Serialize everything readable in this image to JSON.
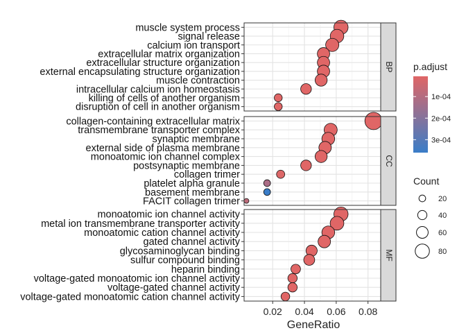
{
  "chart_data": {
    "type": "scatter",
    "xlabel": "GeneRatio",
    "x_ticks": [
      0.02,
      0.04,
      0.06,
      0.08
    ],
    "x_tick_labels": [
      "0.02",
      "0.04",
      "0.06",
      "0.08"
    ],
    "xlim": [
      0.002,
      0.088
    ],
    "facets": [
      {
        "label": "BP",
        "terms": [
          {
            "term": "muscle system process",
            "x": 0.063,
            "count": 80,
            "p_adjust": 6e-06
          },
          {
            "term": "signal release",
            "x": 0.0605,
            "count": 75,
            "p_adjust": 6e-06
          },
          {
            "term": "calcium ion transport",
            "x": 0.0575,
            "count": 72,
            "p_adjust": 6e-06
          },
          {
            "term": "extracellular matrix organization",
            "x": 0.052,
            "count": 65,
            "p_adjust": 6e-06
          },
          {
            "term": "extracellular structure organization",
            "x": 0.052,
            "count": 65,
            "p_adjust": 6e-06
          },
          {
            "term": "external encapsulating structure organization",
            "x": 0.052,
            "count": 65,
            "p_adjust": 6e-06
          },
          {
            "term": "muscle contraction",
            "x": 0.0505,
            "count": 63,
            "p_adjust": 6e-06
          },
          {
            "term": "intracellular calcium ion homeostasis",
            "x": 0.041,
            "count": 52,
            "p_adjust": 6e-06
          },
          {
            "term": "killing of cells of another organism",
            "x": 0.0235,
            "count": 30,
            "p_adjust": 6e-06
          },
          {
            "term": "disruption of cell in another organism",
            "x": 0.0235,
            "count": 30,
            "p_adjust": 6e-06
          }
        ]
      },
      {
        "label": "CC",
        "terms": [
          {
            "term": "collagen-containing extracellular matrix",
            "x": 0.0835,
            "count": 105,
            "p_adjust": 6e-06
          },
          {
            "term": "transmembrane transporter complex",
            "x": 0.0565,
            "count": 71,
            "p_adjust": 6e-06
          },
          {
            "term": "synaptic membrane",
            "x": 0.055,
            "count": 69,
            "p_adjust": 6e-06
          },
          {
            "term": "external side of plasma membrane",
            "x": 0.053,
            "count": 66,
            "p_adjust": 6e-06
          },
          {
            "term": "monoatomic ion channel complex",
            "x": 0.0505,
            "count": 63,
            "p_adjust": 6e-06
          },
          {
            "term": "postsynaptic membrane",
            "x": 0.041,
            "count": 52,
            "p_adjust": 6e-06
          },
          {
            "term": "collagen trimer",
            "x": 0.025,
            "count": 32,
            "p_adjust": 1.5e-05
          },
          {
            "term": "platelet alpha granule",
            "x": 0.0165,
            "count": 21,
            "p_adjust": 0.00012
          },
          {
            "term": "basement membrane",
            "x": 0.0165,
            "count": 21,
            "p_adjust": 0.00036
          },
          {
            "term": "FACIT collagen trimer",
            "x": 0.0035,
            "count": 5,
            "p_adjust": 8e-05
          }
        ]
      },
      {
        "label": "MF",
        "terms": [
          {
            "term": "monoatomic ion channel activity",
            "x": 0.063,
            "count": 80,
            "p_adjust": 6e-06
          },
          {
            "term": "metal ion transmembrane transporter activity",
            "x": 0.0605,
            "count": 76,
            "p_adjust": 6e-06
          },
          {
            "term": "monoatomic cation channel activity",
            "x": 0.055,
            "count": 69,
            "p_adjust": 6e-06
          },
          {
            "term": "gated channel activity",
            "x": 0.0525,
            "count": 66,
            "p_adjust": 6e-06
          },
          {
            "term": "glycosaminoglycan binding",
            "x": 0.0445,
            "count": 56,
            "p_adjust": 6e-06
          },
          {
            "term": "sulfur compound binding",
            "x": 0.043,
            "count": 54,
            "p_adjust": 6e-06
          },
          {
            "term": "heparin binding",
            "x": 0.0345,
            "count": 43,
            "p_adjust": 6e-06
          },
          {
            "term": "voltage-gated monoatomic ion channel activity",
            "x": 0.0325,
            "count": 41,
            "p_adjust": 6e-06
          },
          {
            "term": "voltage-gated channel activity",
            "x": 0.0325,
            "count": 41,
            "p_adjust": 6e-06
          },
          {
            "term": "voltage-gated monoatomic cation channel activity",
            "x": 0.028,
            "count": 36,
            "p_adjust": 6e-06
          }
        ]
      }
    ],
    "color_legend": {
      "title": "p.adjust",
      "ticks": [
        0.0001,
        0.0002,
        0.0003
      ],
      "tick_labels": [
        "1e-04",
        "2e-04",
        "3e-04"
      ],
      "range": [
        6e-06,
        0.00036
      ],
      "low_color": "#E06666",
      "high_color": "#3A7DC8"
    },
    "size_legend": {
      "title": "Count",
      "values": [
        20,
        40,
        60,
        80
      ],
      "labels": [
        "20",
        "40",
        "60",
        "80"
      ]
    },
    "grid": true,
    "legend_position": "right"
  }
}
